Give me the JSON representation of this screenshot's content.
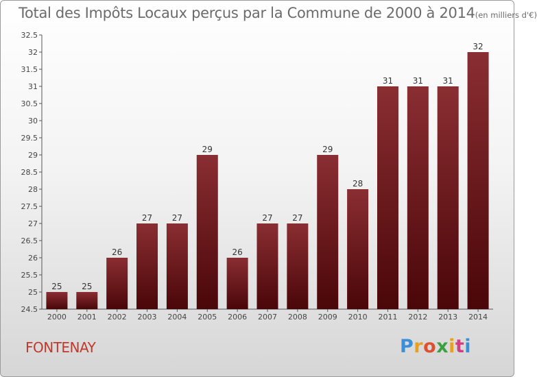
{
  "title": "Total des Impôts Locaux perçus par la Commune de 2000 à 2014",
  "title_unit": "(en milliers d'€)",
  "commune": "FONTENAY",
  "logo": {
    "letters": [
      "P",
      "r",
      "o",
      "x",
      "i",
      "t",
      "i"
    ],
    "colors": [
      "#3a8fd6",
      "#e8a020",
      "#e05030",
      "#3aa040",
      "#e8a020",
      "#d04080",
      "#3a8fd6"
    ]
  },
  "bar_color": "#6e1a1e",
  "chart_data": {
    "type": "bar",
    "title": "Total des Impôts Locaux perçus par la Commune de 2000 à 2014 (en milliers d'€)",
    "categories": [
      "2000",
      "2001",
      "2002",
      "2003",
      "2004",
      "2005",
      "2006",
      "2007",
      "2008",
      "2009",
      "2010",
      "2011",
      "2012",
      "2013",
      "2014"
    ],
    "values": [
      25,
      25,
      26,
      27,
      27,
      29,
      26,
      27,
      27,
      29,
      28,
      31,
      31,
      31,
      32
    ],
    "ylim": [
      24.5,
      32.5
    ],
    "yticks": [
      "24.5",
      "25",
      "25.5",
      "26",
      "26.5",
      "27",
      "27.5",
      "28",
      "28.5",
      "29",
      "29.5",
      "30",
      "30.5",
      "31",
      "31.5",
      "32",
      "32.5"
    ],
    "grid": false
  }
}
